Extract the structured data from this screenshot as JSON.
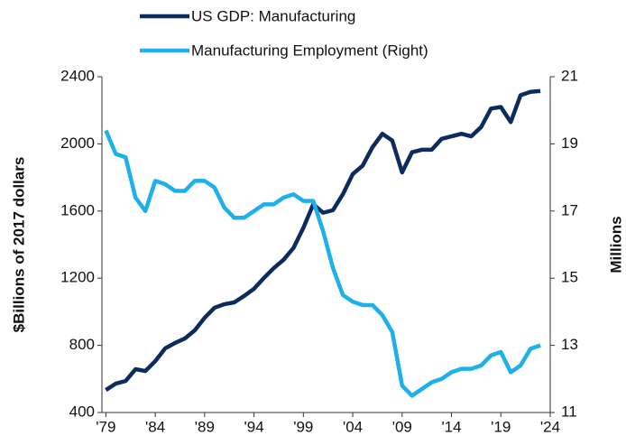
{
  "chart_data": {
    "type": "line",
    "x": [
      1979,
      1980,
      1981,
      1982,
      1983,
      1984,
      1985,
      1986,
      1987,
      1988,
      1989,
      1990,
      1991,
      1992,
      1993,
      1994,
      1995,
      1996,
      1997,
      1998,
      1999,
      2000,
      2001,
      2002,
      2003,
      2004,
      2005,
      2006,
      2007,
      2008,
      2009,
      2010,
      2011,
      2012,
      2013,
      2014,
      2015,
      2016,
      2017,
      2018,
      2019,
      2020,
      2021,
      2022,
      2023
    ],
    "series": [
      {
        "name": "US GDP: Manufacturing",
        "color": "#0c2b5e",
        "axis": "y",
        "values": [
          534,
          572,
          588,
          658,
          647,
          706,
          782,
          814,
          841,
          889,
          964,
          1024,
          1045,
          1056,
          1094,
          1137,
          1201,
          1260,
          1310,
          1380,
          1500,
          1640,
          1590,
          1605,
          1700,
          1820,
          1870,
          1980,
          2060,
          2020,
          1830,
          1950,
          1965,
          1965,
          2030,
          2045,
          2060,
          2045,
          2100,
          2210,
          2220,
          2130,
          2290,
          2310,
          2315
        ]
      },
      {
        "name": "Manufacturing Employment (Right)",
        "color": "#1eb0e8",
        "axis": "y2",
        "values": [
          19.4,
          18.7,
          18.6,
          17.4,
          17.0,
          17.9,
          17.8,
          17.6,
          17.6,
          17.9,
          17.9,
          17.7,
          17.1,
          16.8,
          16.8,
          17.0,
          17.2,
          17.2,
          17.4,
          17.5,
          17.3,
          17.3,
          16.4,
          15.3,
          14.5,
          14.3,
          14.2,
          14.2,
          13.9,
          13.4,
          11.8,
          11.5,
          11.7,
          11.9,
          12.0,
          12.2,
          12.3,
          12.3,
          12.4,
          12.7,
          12.8,
          12.2,
          12.4,
          12.9,
          13.0
        ]
      }
    ],
    "y_label": "$Billions of 2017 dollars",
    "y2_label": "Millions",
    "xlim": [
      1978.6,
      2024
    ],
    "xticks": [
      {
        "value": 1979,
        "label": "'79"
      },
      {
        "value": 1984,
        "label": "'84"
      },
      {
        "value": 1989,
        "label": "'89"
      },
      {
        "value": 1994,
        "label": "'94"
      },
      {
        "value": 1999,
        "label": "'99"
      },
      {
        "value": 2004,
        "label": "'04"
      },
      {
        "value": 2009,
        "label": "'09"
      },
      {
        "value": 2014,
        "label": "'14"
      },
      {
        "value": 2019,
        "label": "'19"
      },
      {
        "value": 2024,
        "label": "'24"
      }
    ],
    "ylim": [
      400,
      2400
    ],
    "yticks": [
      400,
      800,
      1200,
      1600,
      2000,
      2400
    ],
    "y2lim": [
      11,
      21
    ],
    "y2ticks": [
      11,
      13,
      15,
      17,
      19,
      21
    ],
    "grid": false
  }
}
